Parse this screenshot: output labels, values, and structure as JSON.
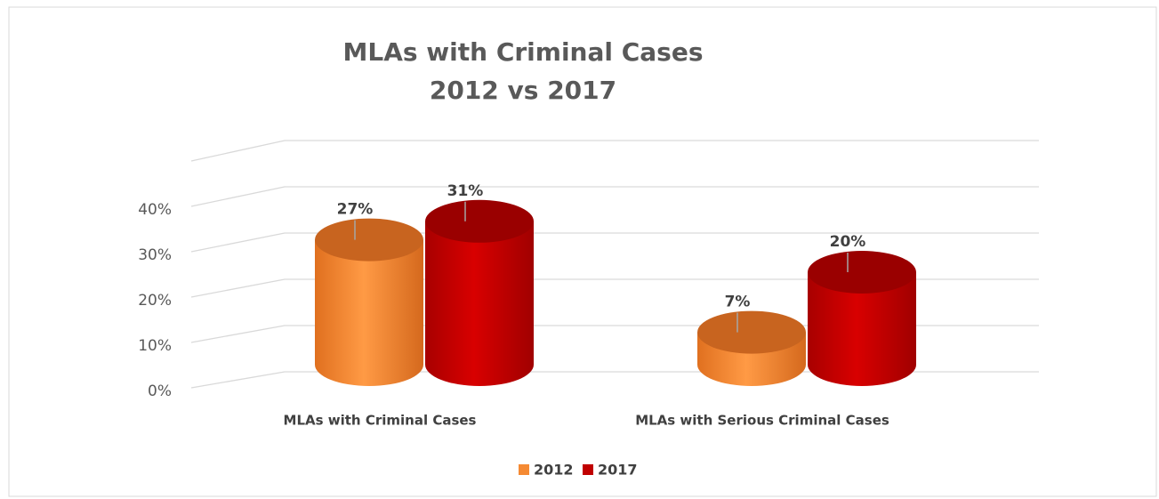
{
  "chart_data": {
    "type": "bar",
    "title": [
      "MLAs with Criminal Cases",
      "2012 vs 2017"
    ],
    "categories": [
      "MLAs with Criminal Cases",
      "MLAs with Serious Criminal Cases"
    ],
    "series": [
      {
        "name": "2012",
        "color": "#f58a33",
        "values": [
          27,
          7
        ],
        "value_labels": [
          "27%",
          "7%"
        ]
      },
      {
        "name": "2017",
        "color": "#c00000",
        "values": [
          31,
          20
        ],
        "value_labels": [
          "31%",
          "20%"
        ]
      }
    ],
    "ylim": [
      0,
      50
    ],
    "yticks": [
      {
        "value": 0,
        "label": "0%"
      },
      {
        "value": 10,
        "label": "10%"
      },
      {
        "value": 20,
        "label": "20%"
      },
      {
        "value": 30,
        "label": "30%"
      },
      {
        "value": 40,
        "label": "40%"
      }
    ],
    "grid": true,
    "legend": "bottom"
  }
}
